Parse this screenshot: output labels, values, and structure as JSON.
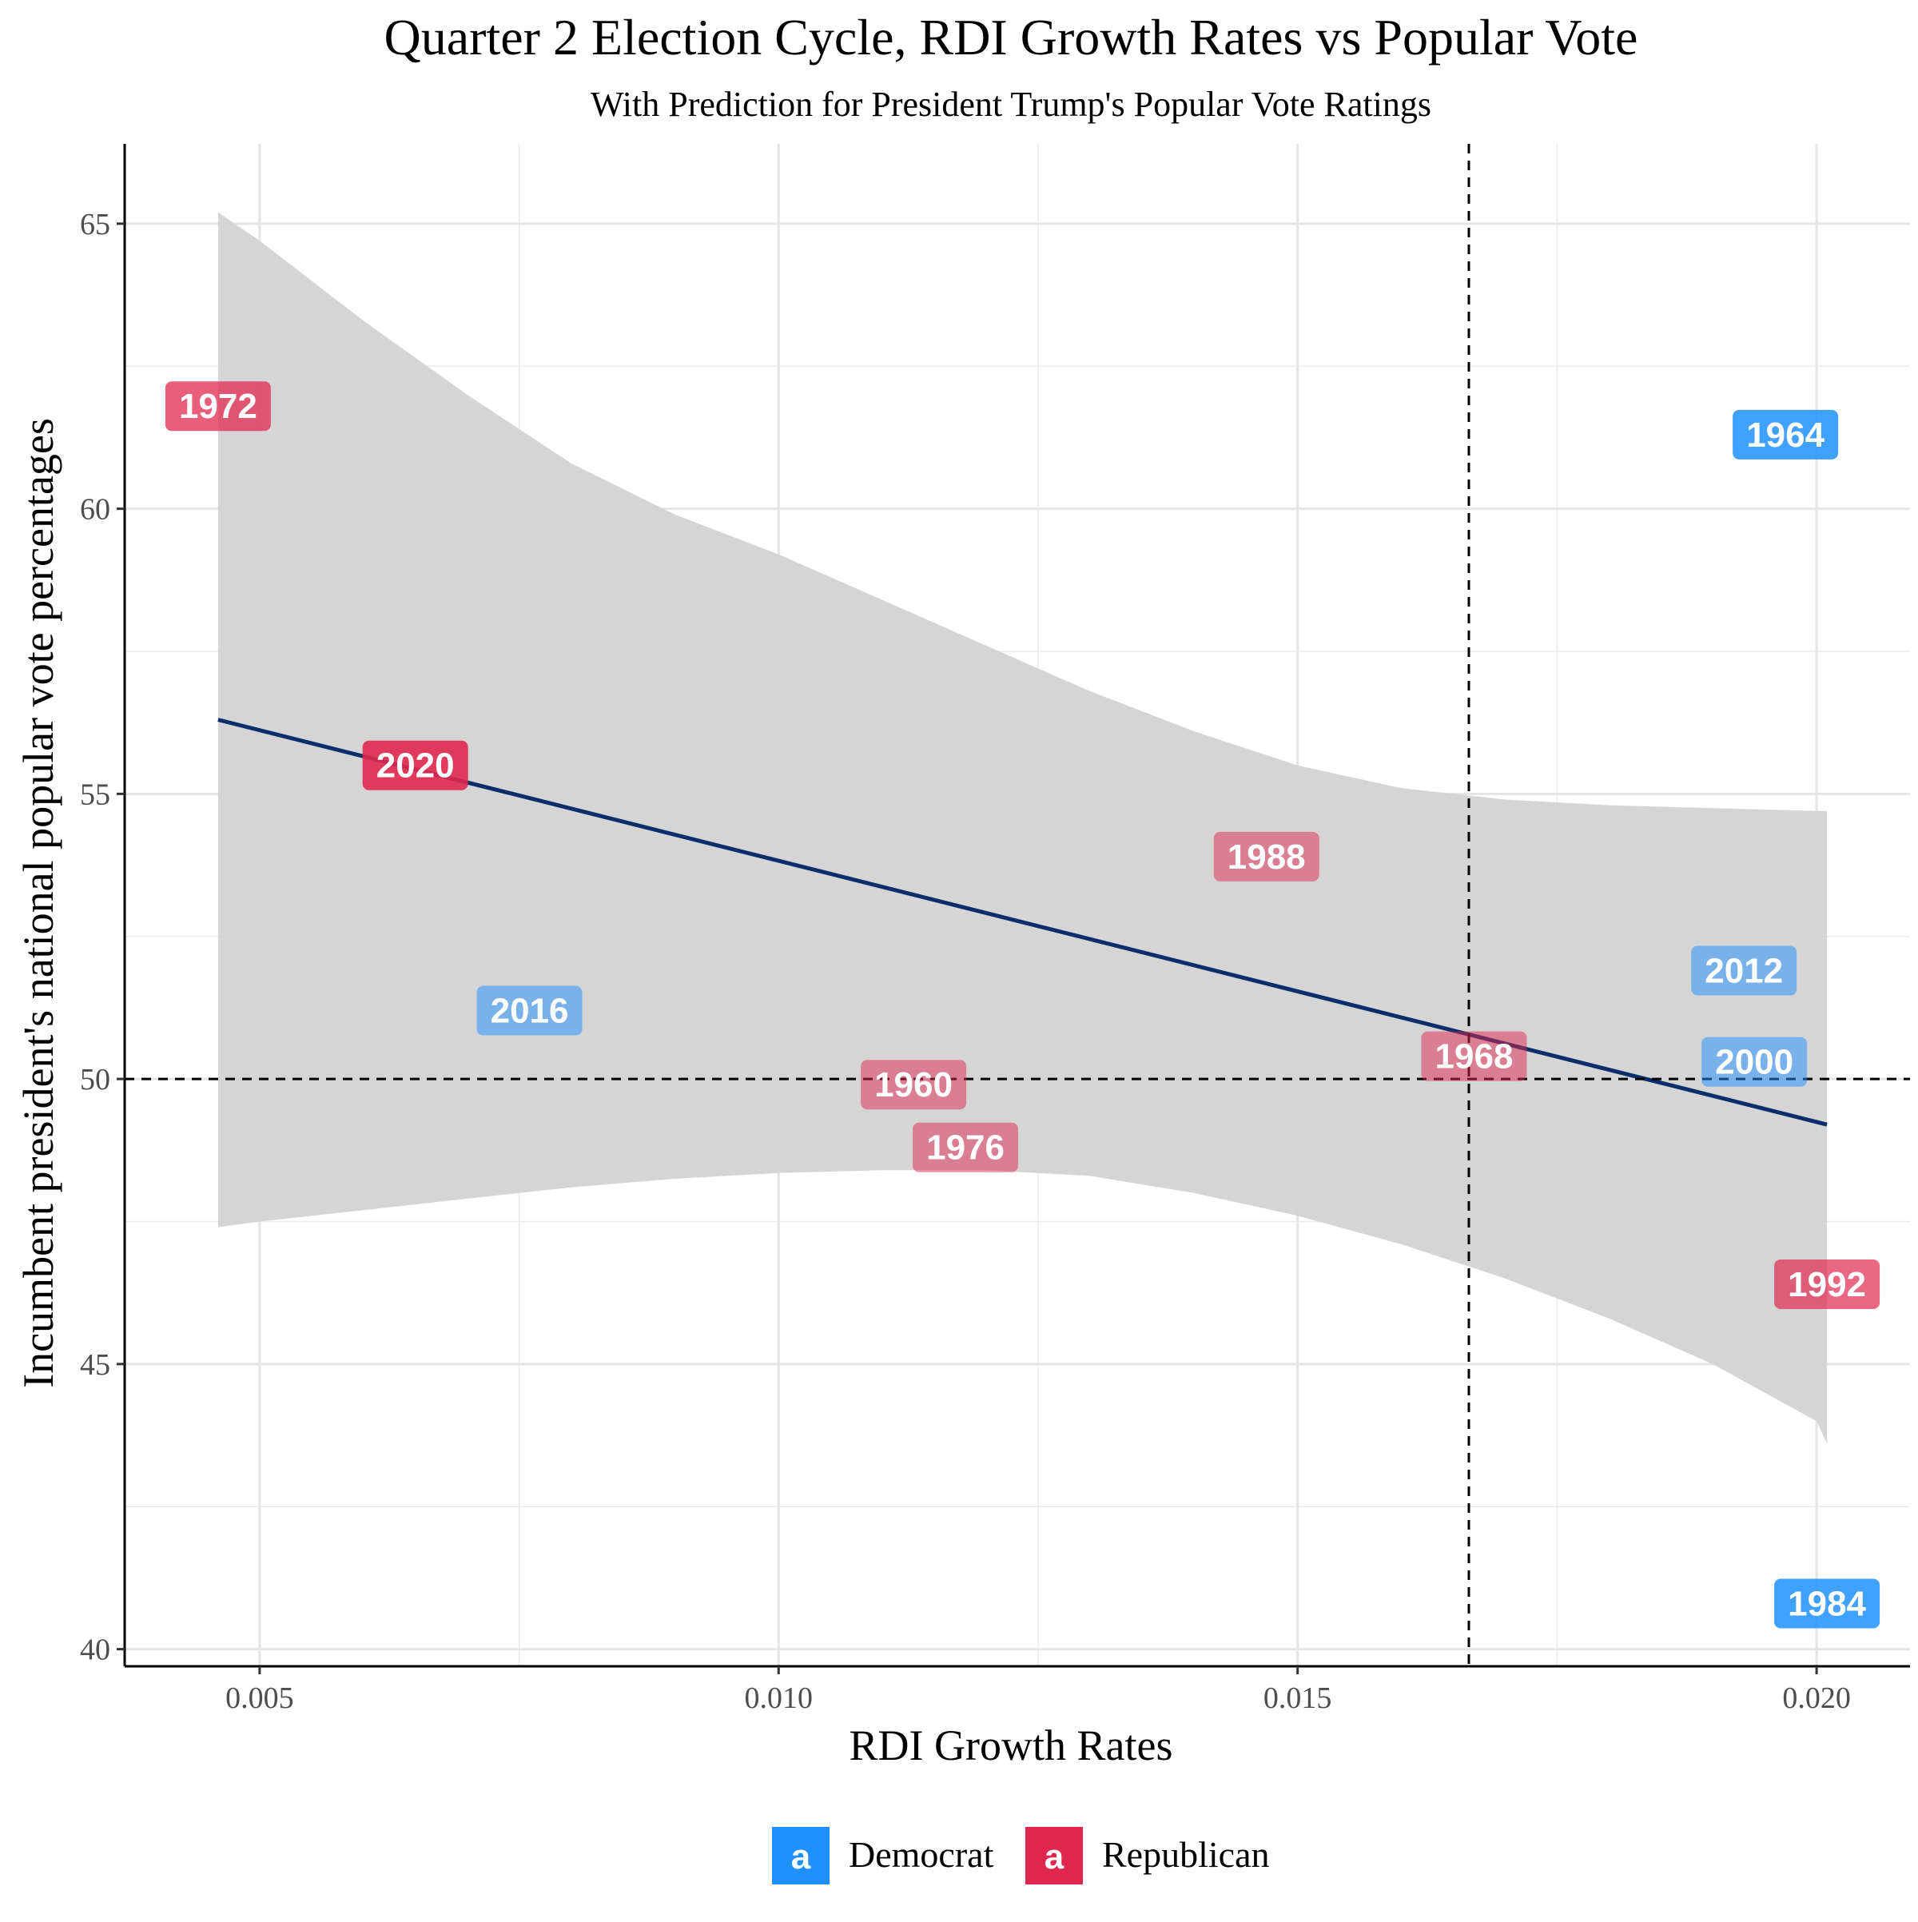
{
  "chart_data": {
    "type": "scatter",
    "title": "Quarter 2 Election Cycle, RDI Growth Rates vs Popular Vote",
    "subtitle": "With Prediction for President Trump's Popular Vote Ratings",
    "xlabel": "RDI Growth Rates",
    "ylabel": "Incumbent president's national popular vote percentages",
    "xlim": [
      0.0037,
      0.0209
    ],
    "ylim": [
      39.7,
      66.4
    ],
    "x_ticks": [
      {
        "value": 0.005,
        "label": "0.005"
      },
      {
        "value": 0.01,
        "label": "0.010"
      },
      {
        "value": 0.015,
        "label": "0.015"
      },
      {
        "value": 0.02,
        "label": "0.020"
      }
    ],
    "y_ticks": [
      {
        "value": 40,
        "label": "40"
      },
      {
        "value": 45,
        "label": "45"
      },
      {
        "value": 50,
        "label": "50"
      },
      {
        "value": 55,
        "label": "55"
      },
      {
        "value": 60,
        "label": "60"
      },
      {
        "value": 65,
        "label": "65"
      }
    ],
    "grid": true,
    "legend": {
      "position": "bottom",
      "entries": [
        {
          "name": "Democrat",
          "key": "D",
          "symbol": "a"
        },
        {
          "name": "Republican",
          "key": "R",
          "symbol": "a"
        }
      ]
    },
    "colors": {
      "D": "#1E90FF",
      "R": "#E0284F",
      "fit_line": "#0B2D6B",
      "ribbon": "#D3D3D3",
      "reference_line": "#000000"
    },
    "points": [
      {
        "label": "1972",
        "x": 0.0046,
        "y": 61.8,
        "party": "R",
        "alpha": 0.75
      },
      {
        "label": "1964",
        "x": 0.0197,
        "y": 61.3,
        "party": "D",
        "alpha": 0.85
      },
      {
        "label": "2020",
        "x": 0.0065,
        "y": 55.5,
        "party": "R",
        "alpha": 0.9
      },
      {
        "label": "1988",
        "x": 0.0147,
        "y": 53.9,
        "party": "R",
        "alpha": 0.5
      },
      {
        "label": "2012",
        "x": 0.0193,
        "y": 51.9,
        "party": "D",
        "alpha": 0.5
      },
      {
        "label": "2016",
        "x": 0.0076,
        "y": 51.2,
        "party": "D",
        "alpha": 0.5
      },
      {
        "label": "1968",
        "x": 0.0167,
        "y": 50.4,
        "party": "R",
        "alpha": 0.5
      },
      {
        "label": "2000",
        "x": 0.0194,
        "y": 50.3,
        "party": "D",
        "alpha": 0.5
      },
      {
        "label": "1960",
        "x": 0.0113,
        "y": 49.9,
        "party": "R",
        "alpha": 0.5
      },
      {
        "label": "1976",
        "x": 0.0118,
        "y": 48.8,
        "party": "R",
        "alpha": 0.5
      },
      {
        "label": "1992",
        "x": 0.0201,
        "y": 46.4,
        "party": "R",
        "alpha": 0.7
      },
      {
        "label": "1984",
        "x": 0.0201,
        "y": 40.8,
        "party": "D",
        "alpha": 0.85
      }
    ],
    "regression": {
      "x": [
        0.0046,
        0.0201
      ],
      "y": [
        56.3,
        49.2
      ]
    },
    "confidence_band": {
      "x": [
        0.0046,
        0.005,
        0.006,
        0.007,
        0.008,
        0.009,
        0.01,
        0.011,
        0.012,
        0.013,
        0.014,
        0.015,
        0.016,
        0.017,
        0.018,
        0.019,
        0.02,
        0.0201
      ],
      "upper": [
        65.2,
        64.7,
        63.3,
        62.0,
        60.8,
        59.9,
        59.2,
        58.4,
        57.6,
        56.8,
        56.1,
        55.5,
        55.1,
        54.9,
        54.8,
        54.75,
        54.7,
        54.7
      ],
      "lower": [
        47.4,
        47.5,
        47.7,
        47.9,
        48.1,
        48.25,
        48.35,
        48.4,
        48.4,
        48.3,
        48.0,
        47.6,
        47.1,
        46.5,
        45.8,
        45.0,
        44.0,
        43.6
      ]
    },
    "reference_lines": {
      "vertical_x": 0.01665,
      "horizontal_y": 50
    }
  }
}
